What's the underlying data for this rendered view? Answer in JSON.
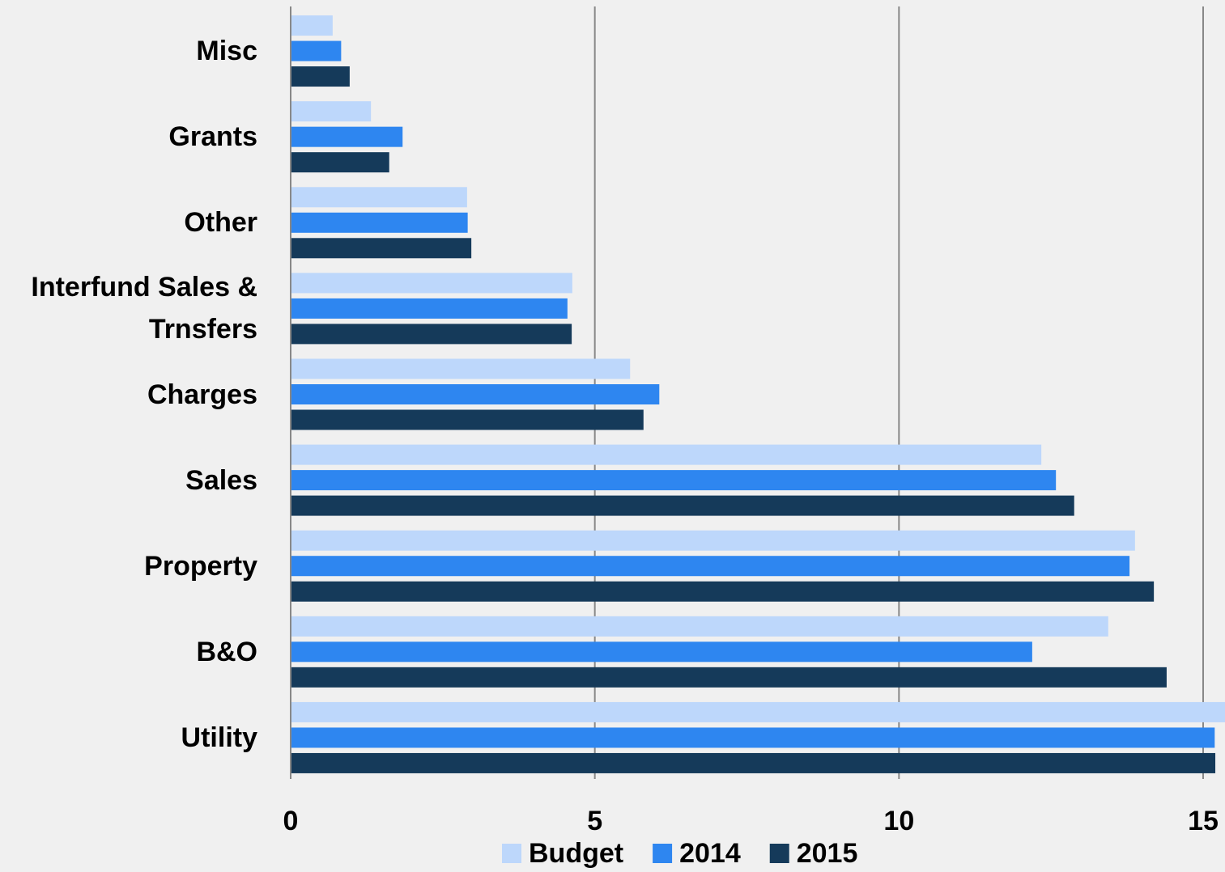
{
  "chart_data": {
    "type": "hbar",
    "categories": [
      "Misc",
      "Grants",
      "Other",
      "Interfund Sales & Trnsfers",
      "Charges",
      "Sales",
      "Property",
      "B&O",
      "Utility"
    ],
    "series": [
      {
        "name": "Budget",
        "color": "#bdd7fb",
        "values": [
          0.69,
          1.32,
          2.9,
          4.63,
          5.58,
          12.34,
          13.88,
          13.44,
          15.4
        ]
      },
      {
        "name": "2014",
        "color": "#2e86f0",
        "values": [
          0.83,
          1.84,
          2.91,
          4.55,
          6.06,
          12.58,
          13.79,
          12.19,
          15.19
        ]
      },
      {
        "name": "2015",
        "color": "#153a5a",
        "values": [
          0.97,
          1.62,
          2.97,
          4.62,
          5.8,
          12.88,
          14.19,
          14.4,
          15.2
        ]
      }
    ],
    "xlim": [
      0,
      15
    ],
    "xticks": [
      0,
      5,
      10,
      15
    ],
    "grid": true,
    "legend": "bottom"
  }
}
